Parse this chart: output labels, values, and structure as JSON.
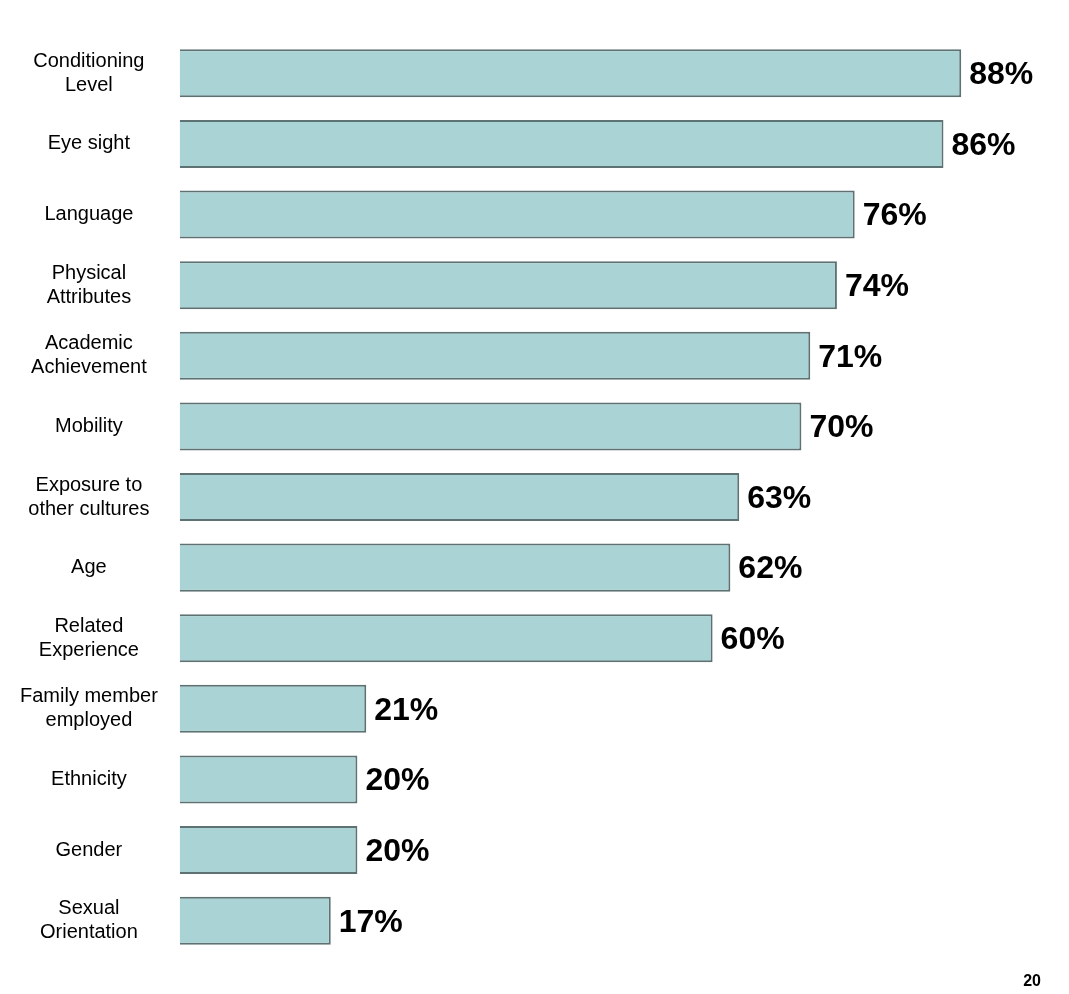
{
  "chart_data": {
    "type": "bar",
    "orientation": "horizontal",
    "categories": [
      "Conditioning Level",
      "Eye sight",
      "Language",
      "Physical Attributes",
      "Academic Achievement",
      "Mobility",
      "Exposure to other cultures",
      "Age",
      "Related Experience",
      "Family member employed",
      "Ethnicity",
      "Gender",
      "Sexual Orientation"
    ],
    "values": [
      88,
      86,
      76,
      74,
      71,
      70,
      63,
      62,
      60,
      21,
      20,
      20,
      17
    ],
    "value_labels": [
      "88%",
      "86%",
      "76%",
      "74%",
      "71%",
      "70%",
      "63%",
      "62%",
      "60%",
      "21%",
      "20%",
      "20%",
      "17%"
    ],
    "color": "#a9d3d5",
    "tick_labels": "y",
    "annotations": [
      "20"
    ]
  }
}
